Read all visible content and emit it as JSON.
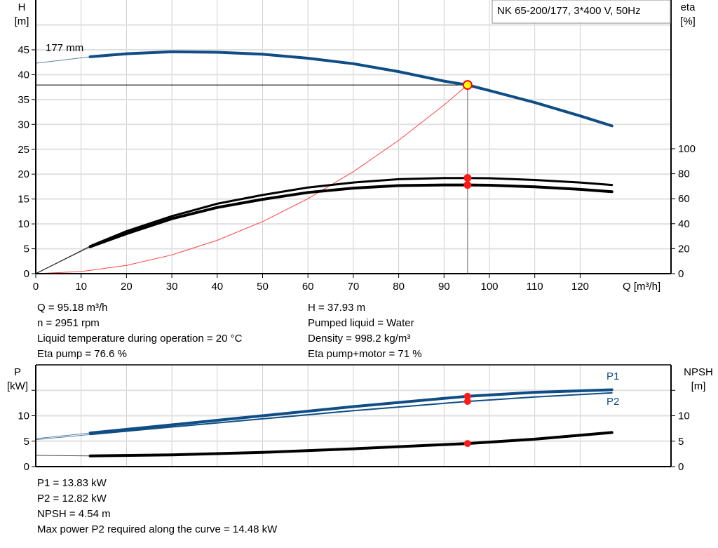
{
  "chart_data": [
    {
      "type": "line",
      "title": "NK 65-200/177, 3*400 V, 50Hz",
      "xlabel": "Q [m³/h]",
      "ylabel_left": [
        "H",
        "[m]"
      ],
      "ylabel_right": [
        "eta",
        "[%]"
      ],
      "xlim": [
        0,
        140
      ],
      "ylim_left": [
        0,
        50
      ],
      "ylim_right": [
        0,
        100
      ],
      "x_ticks": [
        0,
        10,
        20,
        30,
        40,
        50,
        60,
        70,
        80,
        90,
        100,
        110,
        120
      ],
      "y_ticks_left": [
        0,
        5,
        10,
        15,
        20,
        25,
        30,
        35,
        40,
        45
      ],
      "y_ticks_right": [
        0,
        20,
        40,
        60,
        80,
        100
      ],
      "grid": true,
      "curve_label": "177 mm",
      "min_flow": 12,
      "duty_point": {
        "Q": 95.18,
        "H": 37.93,
        "eta_pump": 76.6,
        "eta_pump_motor": 71
      },
      "series": [
        {
          "axis": "left",
          "color": "#0f4d85",
          "x": [
            0,
            12,
            20,
            30,
            40,
            50,
            60,
            70,
            80,
            90,
            95.18,
            100,
            110,
            120,
            127
          ],
          "y": [
            42.3,
            43.6,
            44.2,
            44.6,
            44.5,
            44.1,
            43.3,
            42.2,
            40.6,
            38.7,
            37.93,
            36.8,
            34.4,
            31.7,
            29.7
          ]
        },
        {
          "axis": "right",
          "color": "#000000",
          "x": [
            0,
            12,
            20,
            30,
            40,
            50,
            60,
            70,
            80,
            90,
            95.18,
            100,
            110,
            120,
            127
          ],
          "y": [
            0,
            22,
            34,
            46,
            56,
            63,
            69,
            73,
            75.6,
            76.5,
            76.6,
            76.4,
            75,
            73,
            71
          ]
        },
        {
          "axis": "right",
          "color": "#000000",
          "x": [
            0,
            12,
            20,
            30,
            40,
            50,
            60,
            70,
            80,
            90,
            95.18,
            100,
            110,
            120,
            127
          ],
          "y": [
            0,
            21.6,
            32,
            44,
            53,
            59.5,
            65,
            68.5,
            70.5,
            71,
            71,
            70.8,
            69.5,
            67.5,
            65.6
          ]
        },
        {
          "axis": "left",
          "color": "#ff4040",
          "type": "system",
          "x": [
            0,
            10,
            20,
            30,
            40,
            50,
            60,
            70,
            80,
            90,
            95.18
          ],
          "y": [
            0,
            0.42,
            1.67,
            3.77,
            6.7,
            10.47,
            15.07,
            20.5,
            26.8,
            33.9,
            37.93
          ]
        }
      ]
    },
    {
      "type": "line",
      "xlim": [
        0,
        140
      ],
      "ylabel_left": [
        "P",
        "[kW]"
      ],
      "ylabel_right": [
        "NPSH",
        "[m]"
      ],
      "ylim_left": [
        0,
        20
      ],
      "y_ticks_left": [
        0,
        5,
        10
      ],
      "y_ticks_right": [
        0,
        5,
        10
      ],
      "grid": true,
      "min_flow": 12,
      "duty_point": {
        "Q": 95.18,
        "P1": 13.83,
        "P2": 12.82,
        "NPSH": 4.54
      },
      "series": [
        {
          "name": "P1",
          "color": "#0f4d85",
          "x": [
            0,
            12,
            30,
            50,
            70,
            95.18,
            110,
            127
          ],
          "y": [
            5.5,
            6.6,
            8.2,
            10.0,
            11.8,
            13.83,
            14.6,
            15.1
          ]
        },
        {
          "name": "P2",
          "color": "#0f4d85",
          "x": [
            0,
            12,
            30,
            50,
            70,
            95.18,
            110,
            127
          ],
          "y": [
            5.3,
            6.3,
            7.8,
            9.4,
            11.0,
            12.82,
            13.7,
            14.5
          ]
        },
        {
          "name": "",
          "color": "#000000",
          "x": [
            0,
            12,
            30,
            50,
            70,
            95.18,
            110,
            127
          ],
          "y": [
            2.2,
            2.1,
            2.3,
            2.8,
            3.5,
            4.54,
            5.4,
            6.7
          ]
        }
      ]
    }
  ],
  "info_top": {
    "left": [
      "Q = 95.18 m³/h",
      "n = 2951 rpm",
      "Liquid temperature during operation = 20 °C",
      "Eta pump = 76.6 %"
    ],
    "right": [
      "H = 37.93 m",
      "Pumped liquid = Water",
      "Density = 998.2 kg/m³",
      "Eta pump+motor = 71 %"
    ]
  },
  "info_bottom": [
    "P1 = 13.83 kW",
    "P2 = 12.82 kW",
    "NPSH = 4.54 m",
    "Max power P2 required along the curve = 14.48 kW"
  ]
}
